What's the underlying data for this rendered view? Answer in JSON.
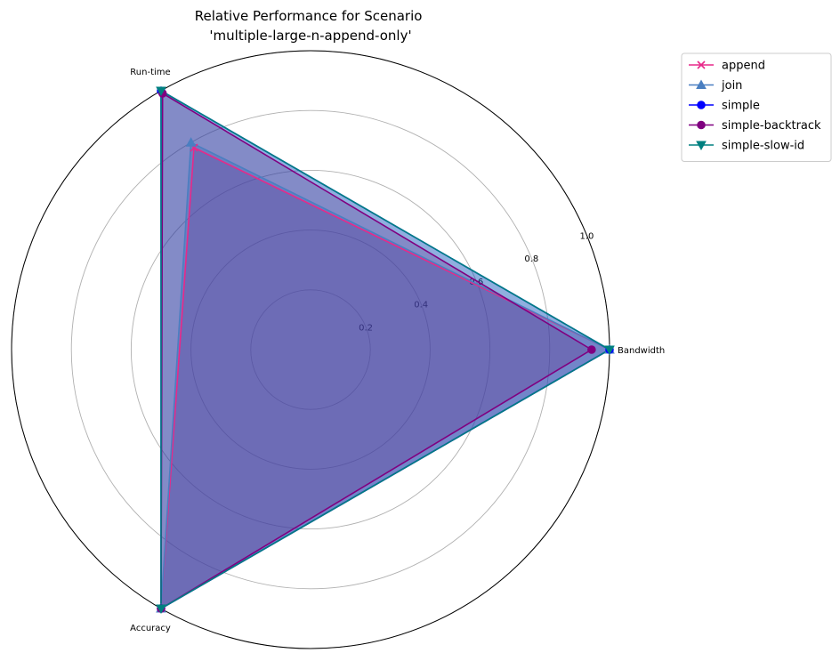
{
  "chart_data": {
    "type": "radar",
    "title": "Relative Performance for Scenario\n'multiple-large-n-append-only'",
    "categories": [
      "Bandwidth",
      "Run-time",
      "Accuracy"
    ],
    "rlim": [
      0,
      1.0
    ],
    "radial_ticks": [
      "0.2",
      "0.4",
      "0.6",
      "0.8",
      "1.0"
    ],
    "grid": true,
    "legend_position": "upper right, outside plot",
    "series": [
      {
        "name": "append",
        "values": [
          1.0,
          0.78,
          1.0
        ],
        "color": "#e7298a",
        "marker": "x"
      },
      {
        "name": "join",
        "values": [
          1.0,
          0.8,
          1.0
        ],
        "color": "#4a7fc1",
        "marker": "^"
      },
      {
        "name": "simple",
        "values": [
          1.0,
          1.0,
          1.0
        ],
        "color": "#0000ff",
        "marker": "o"
      },
      {
        "name": "simple-backtrack",
        "values": [
          0.94,
          0.99,
          1.0
        ],
        "color": "#800080",
        "marker": "o"
      },
      {
        "name": "simple-slow-id",
        "values": [
          1.0,
          1.0,
          1.0
        ],
        "color": "#008080",
        "marker": "v"
      }
    ]
  }
}
